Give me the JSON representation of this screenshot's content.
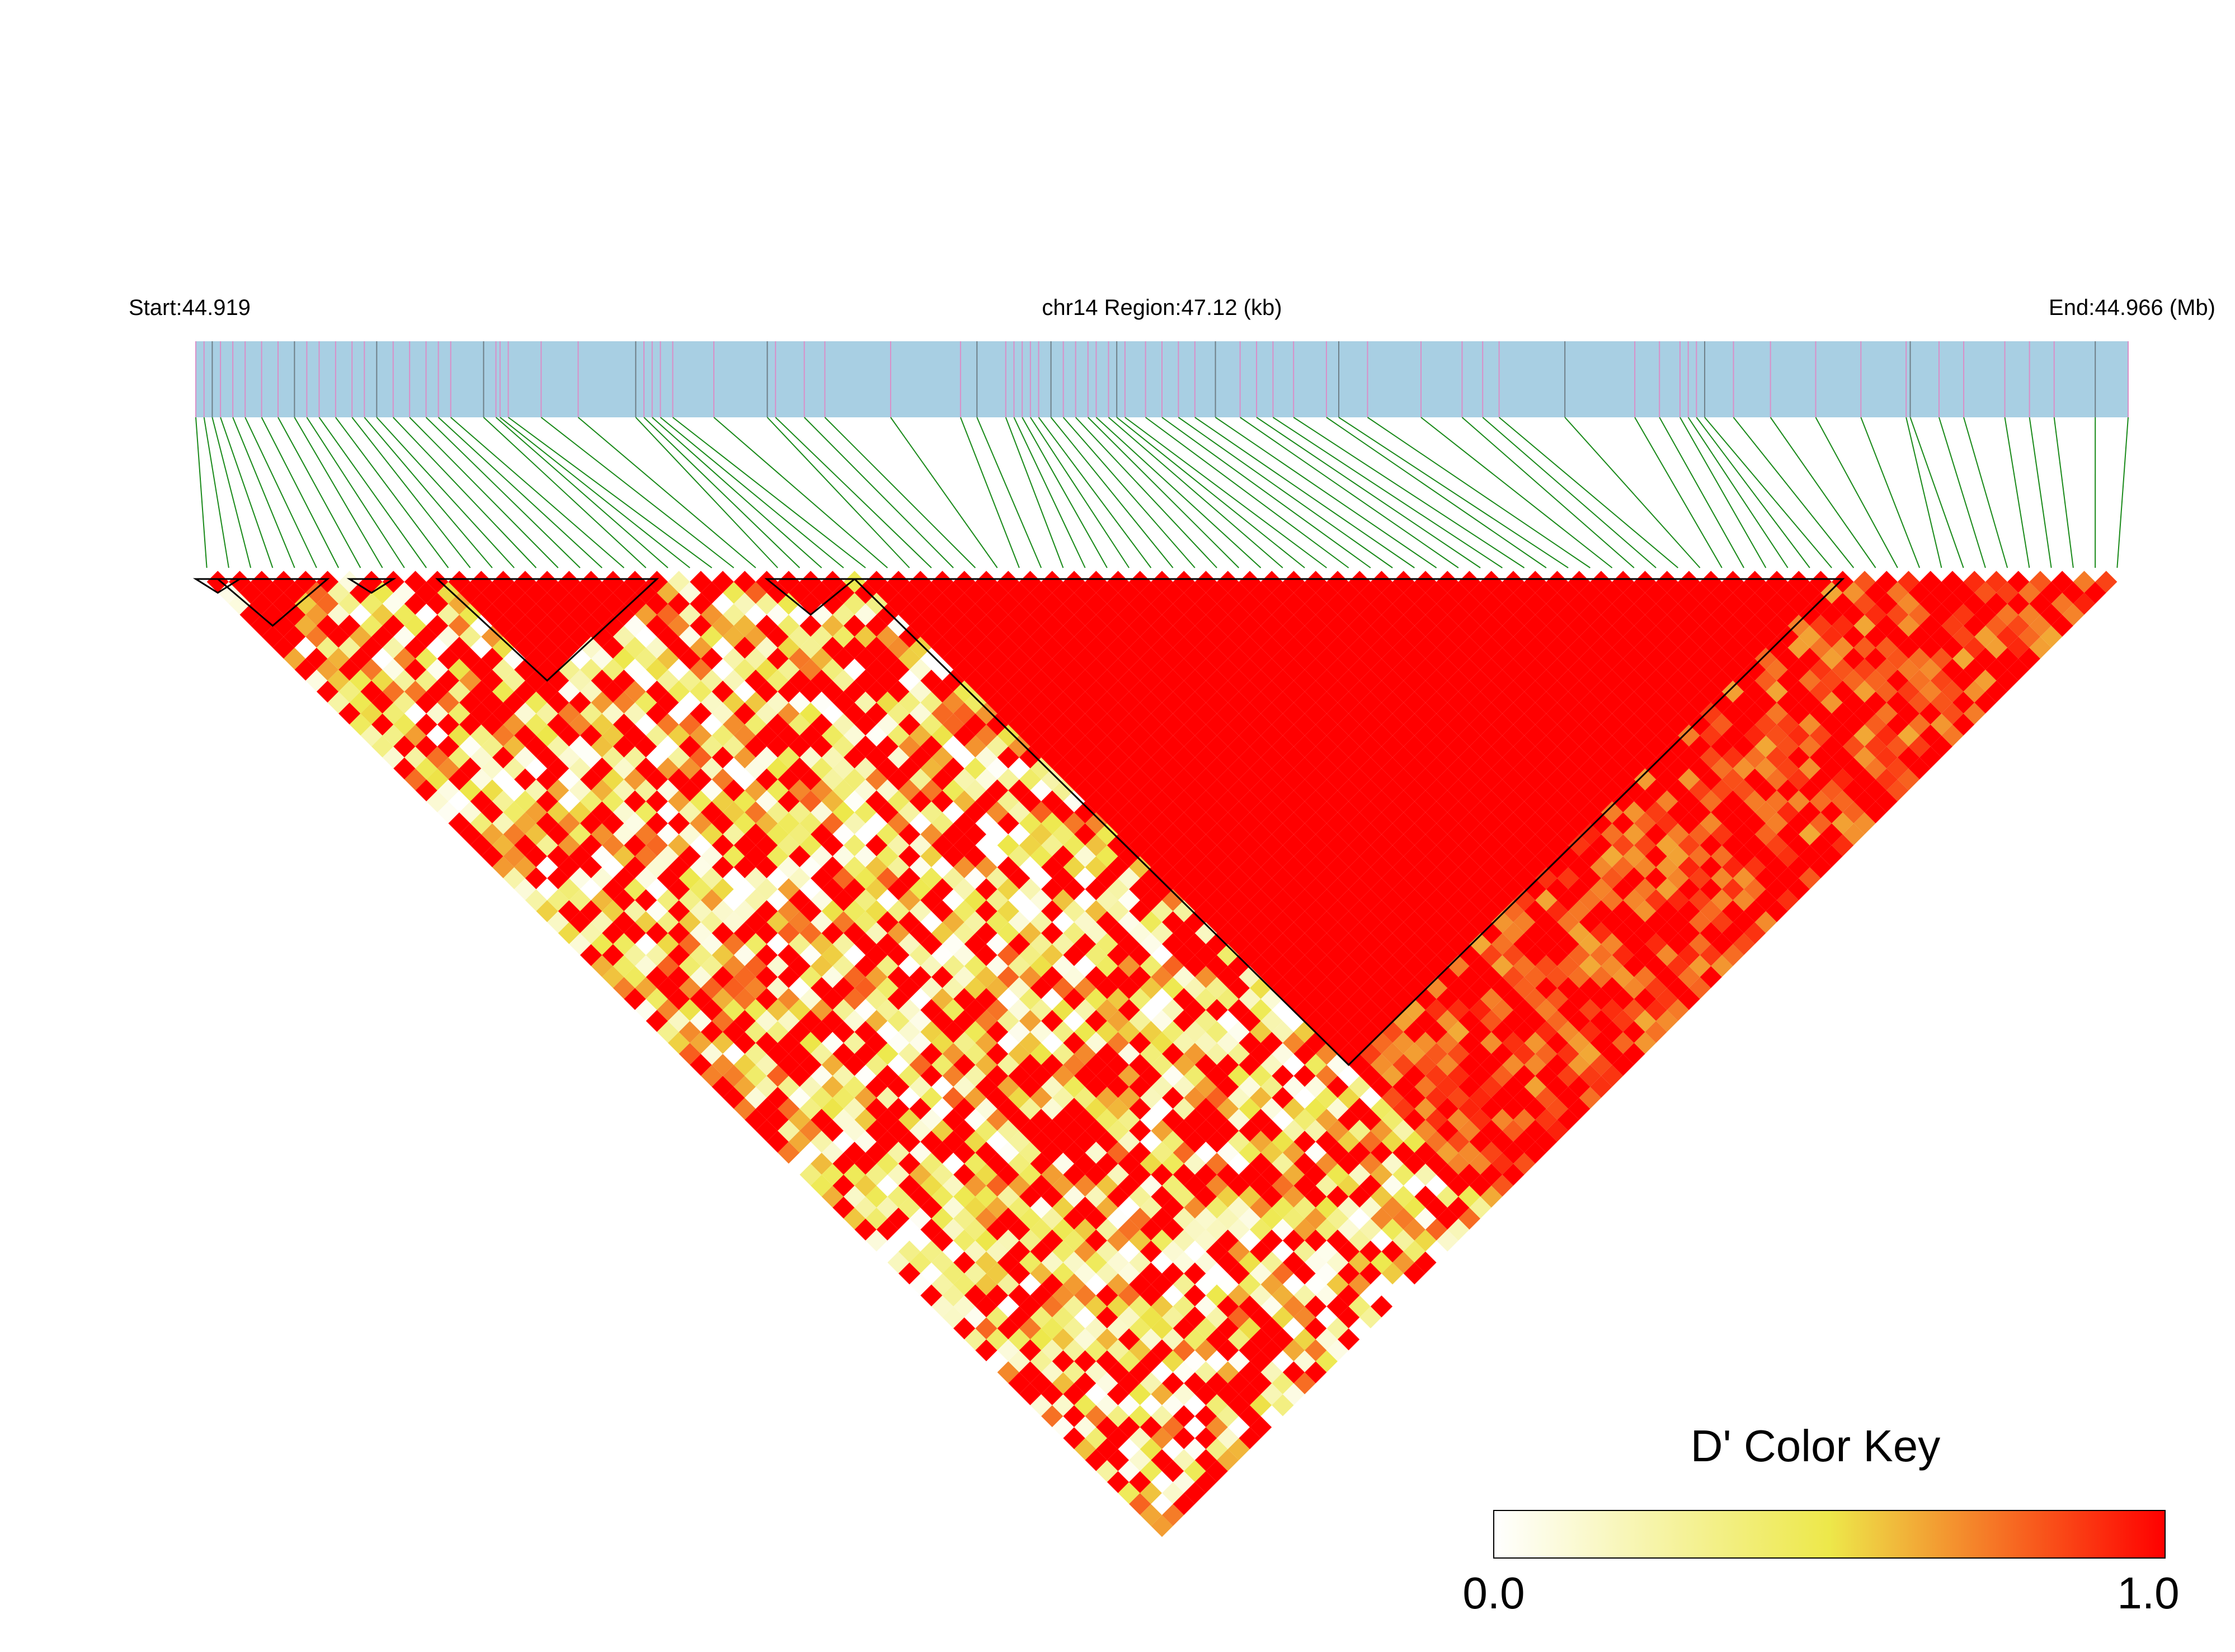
{
  "header": {
    "start_label": "Start:44.919",
    "region_label": "chr14 Region:47.12 (kb)",
    "end_label": "End:44.966 (Mb)"
  },
  "colors": {
    "track_bg": "#a8cfe3",
    "snp_line_pink": "#d98fc8",
    "snp_line_gray": "#6f7f88",
    "connector_green": "#1a8a1a",
    "ld_low": "#ffffff",
    "ld_mid": "#ede84a",
    "ld_high": "#ff0000",
    "block_outline": "#000000"
  },
  "chart_data": {
    "type": "heatmap",
    "subtype": "LD triangle (D')",
    "chromosome": "chr14",
    "region_start_mb": 44.919,
    "region_end_mb": 44.966,
    "region_length_kb": 47.12,
    "n_snps": 88,
    "snp_positions_mb": [
      44.919,
      44.9192,
      44.9194,
      44.9196,
      44.9199,
      44.9202,
      44.9206,
      44.921,
      44.9214,
      44.9217,
      44.922,
      44.9224,
      44.9228,
      44.9231,
      44.9234,
      44.9238,
      44.9242,
      44.9246,
      44.9249,
      44.9252,
      44.926,
      44.9263,
      44.9264,
      44.9266,
      44.9274,
      44.9283,
      44.9297,
      44.9299,
      44.9301,
      44.9303,
      44.9306,
      44.9316,
      44.9329,
      44.9331,
      44.9338,
      44.9343,
      44.9359,
      44.9376,
      44.938,
      44.9387,
      44.9389,
      44.9391,
      44.9393,
      44.9395,
      44.9398,
      44.9401,
      44.9404,
      44.9407,
      44.9409,
      44.9412,
      44.9414,
      44.9416,
      44.9421,
      44.9425,
      44.9429,
      44.9433,
      44.9438,
      44.9444,
      44.9448,
      44.9452,
      44.9457,
      44.9465,
      44.9468,
      44.9475,
      44.9488,
      44.9498,
      44.9503,
      44.9507,
      44.9523,
      44.954,
      44.9546,
      44.9551,
      44.9553,
      44.9555,
      44.9557,
      44.9564,
      44.9573,
      44.9584,
      44.9595,
      44.9606,
      44.9607,
      44.9614,
      44.962,
      44.963,
      44.9636,
      44.9642,
      44.9652,
      44.966
    ],
    "haplotype_blocks_snp_index": [
      [
        0,
        1
      ],
      [
        1,
        5
      ],
      [
        7,
        8
      ],
      [
        11,
        20
      ],
      [
        26,
        29
      ],
      [
        30,
        74
      ]
    ],
    "color_key": {
      "title": "D' Color Key",
      "min_label": "0.0",
      "max_label": "1.0",
      "min": 0.0,
      "max": 1.0,
      "stops": [
        "#ffffff",
        "#ede84a",
        "#ff0000"
      ]
    },
    "dprime_summary": "Most SNP pairs show D' close to 1.0 (red); SNPs 0-29 and the lower-left diagonal bands contain many pairs with intermediate values (D' about 0.4-0.8, orange/yellow)."
  }
}
